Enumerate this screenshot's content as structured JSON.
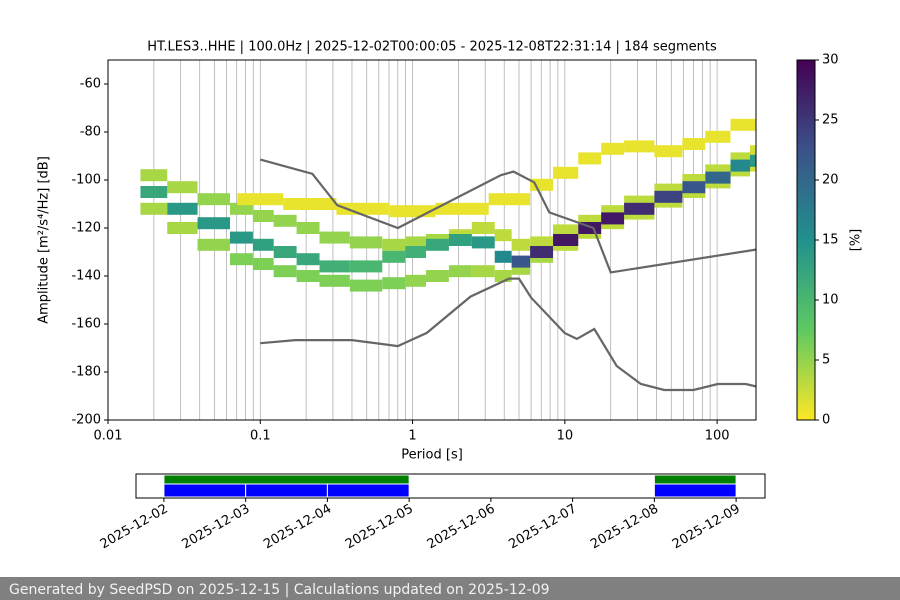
{
  "chart_data": [
    {
      "type": "ppsd",
      "title": "HT.LES3..HHE | 100.0Hz | 2025-12-02T00:00:05 - 2025-12-08T22:31:14 | 184 segments",
      "xlabel": "Period [s]",
      "ylabel": "Amplitude [m²/s⁴/Hz] [dB]",
      "xlog": true,
      "xlim": [
        0.01,
        180
      ],
      "ylim": [
        -200,
        -50
      ],
      "xticks": [
        0.01,
        0.1,
        1,
        10,
        100
      ],
      "yticks": [
        -200,
        -180,
        -160,
        -140,
        -120,
        -100,
        -80,
        -60
      ],
      "grid": true,
      "xgrid": [
        0.02,
        0.03,
        0.04,
        0.05,
        0.06,
        0.07,
        0.08,
        0.09,
        0.1,
        0.2,
        0.3,
        0.4,
        0.5,
        0.6,
        0.7,
        0.8,
        0.9,
        1,
        2,
        3,
        4,
        5,
        6,
        7,
        8,
        9,
        10,
        20,
        30,
        40,
        50,
        60,
        70,
        80,
        90,
        100
      ],
      "cmap": [
        "#fde725",
        "#5ec962",
        "#21918c",
        "#3b528b",
        "#440154"
      ],
      "colorbar": {
        "label": "[%]",
        "lim": [
          0,
          30
        ],
        "ticks": [
          0,
          5,
          10,
          15,
          20,
          25,
          30
        ]
      },
      "density": [
        {
          "x": [
            0.02,
            0.03,
            0.05,
            0.08,
            0.1,
            0.15,
            0.2,
            0.3,
            0.5,
            0.8,
            1,
            1.5,
            2,
            3,
            4,
            5,
            7,
            10,
            15,
            20,
            30,
            50,
            70,
            100,
            150,
            180
          ],
          "values": [
            -98,
            -103,
            -108,
            -112,
            -115,
            -117,
            -120,
            -124,
            -126,
            -127,
            -126,
            -125,
            -123,
            -120,
            -123,
            -127,
            -126,
            -121,
            -117,
            -113,
            -109,
            -104,
            -100,
            -96,
            -91,
            -88
          ],
          "percent": [
            4,
            4,
            5,
            5,
            5,
            5,
            5,
            5,
            5,
            4,
            4,
            4,
            3,
            3,
            3,
            3,
            3,
            3,
            3,
            3,
            3,
            3,
            3,
            3,
            3,
            2
          ]
        },
        {
          "x": [
            0.02,
            0.03,
            0.05,
            0.08,
            0.1,
            0.15,
            0.2,
            0.3,
            0.5,
            0.8,
            1,
            1.5,
            2,
            3,
            4,
            5,
            7,
            10,
            15,
            20,
            30,
            50,
            70,
            100,
            150,
            180
          ],
          "values": [
            -112,
            -120,
            -127,
            -133,
            -135,
            -138,
            -140,
            -142,
            -144,
            -143,
            -142,
            -140,
            -138,
            -138,
            -140,
            -137,
            -132,
            -127,
            -122,
            -118,
            -114,
            -109,
            -105,
            -101,
            -96,
            -94
          ],
          "percent": [
            4,
            4,
            5,
            6,
            6,
            6,
            6,
            6,
            6,
            6,
            5,
            5,
            5,
            4,
            4,
            4,
            4,
            3,
            3,
            3,
            3,
            3,
            3,
            3,
            3,
            2
          ]
        },
        {
          "x": [
            0.1,
            0.2,
            0.5,
            1,
            2,
            5,
            7,
            10,
            15,
            20,
            30,
            50,
            70,
            100,
            150
          ],
          "values": [
            -108,
            -110,
            -112,
            -113,
            -112,
            -108,
            -102,
            -97,
            -91,
            -87,
            -86,
            -88,
            -85,
            -82,
            -77
          ],
          "percent": [
            1,
            1,
            1,
            1,
            1,
            1,
            1,
            1,
            1,
            1,
            1,
            1,
            1,
            1,
            1
          ]
        },
        {
          "x": [
            0.02,
            0.03,
            0.05,
            0.08,
            0.1,
            0.15,
            0.2,
            0.3,
            0.5,
            0.8,
            1,
            1.5,
            2,
            3,
            4,
            5,
            7,
            10,
            15,
            20,
            30,
            50,
            70,
            100,
            150,
            180
          ],
          "values": [
            -105,
            -112,
            -118,
            -124,
            -127,
            -130,
            -133,
            -136,
            -136,
            -132,
            -130,
            -127,
            -125,
            -126,
            -132,
            -134,
            -130,
            -125,
            -120,
            -116,
            -112,
            -107,
            -103,
            -99,
            -94,
            -92
          ],
          "percent": [
            12,
            14,
            14,
            14,
            13,
            12,
            12,
            11,
            10,
            10,
            11,
            12,
            13,
            14,
            16,
            22,
            26,
            28,
            28,
            28,
            26,
            24,
            22,
            20,
            16,
            14
          ]
        }
      ],
      "series": [
        {
          "color": "#666666",
          "x": [
            0.1,
            0.22,
            0.32,
            0.8,
            3.8,
            4.6,
            6.3,
            7.9,
            15.4,
            20,
            180
          ],
          "values": [
            -91.5,
            -97.4,
            -110.5,
            -120,
            -98,
            -96.5,
            -101,
            -113.5,
            -120,
            -138.5,
            -129
          ]
        },
        {
          "color": "#666666",
          "x": [
            0.1,
            0.17,
            0.4,
            0.8,
            1.24,
            2.4,
            4.3,
            5,
            6,
            10,
            12,
            15.6,
            21.9,
            31.6,
            45,
            70,
            101,
            154,
            180
          ],
          "values": [
            -168,
            -166.7,
            -166.7,
            -169.2,
            -163.7,
            -148.6,
            -141.1,
            -141.1,
            -149,
            -163.8,
            -166.2,
            -162.1,
            -177.5,
            -185,
            -187.5,
            -187.5,
            -185,
            -185,
            -186
          ]
        }
      ]
    },
    {
      "type": "timeline",
      "xlim": [
        "2025-12-01T15:48",
        "2025-12-09T08:29"
      ],
      "xticks": [
        "2025-12-02",
        "2025-12-03",
        "2025-12-04",
        "2025-12-05",
        "2025-12-06",
        "2025-12-07",
        "2025-12-08",
        "2025-12-09"
      ],
      "coverage": {
        "color": "#008000",
        "intervals": [
          [
            "2025-12-02T00:00",
            "2025-12-05T00:00"
          ],
          [
            "2025-12-08T00:00",
            "2025-12-09T00:00"
          ]
        ]
      },
      "segments": {
        "color": "#0000ff",
        "intervals": [
          [
            "2025-12-02T00:00",
            "2025-12-03T00:00"
          ],
          [
            "2025-12-03T00:00",
            "2025-12-04T00:00"
          ],
          [
            "2025-12-04T00:00",
            "2025-12-05T00:00"
          ],
          [
            "2025-12-08T00:00",
            "2025-12-09T00:00"
          ]
        ]
      }
    }
  ],
  "footer": {
    "text": "Generated by SeedPSD on 2025-12-15 | Calculations updated on 2025-12-09"
  }
}
